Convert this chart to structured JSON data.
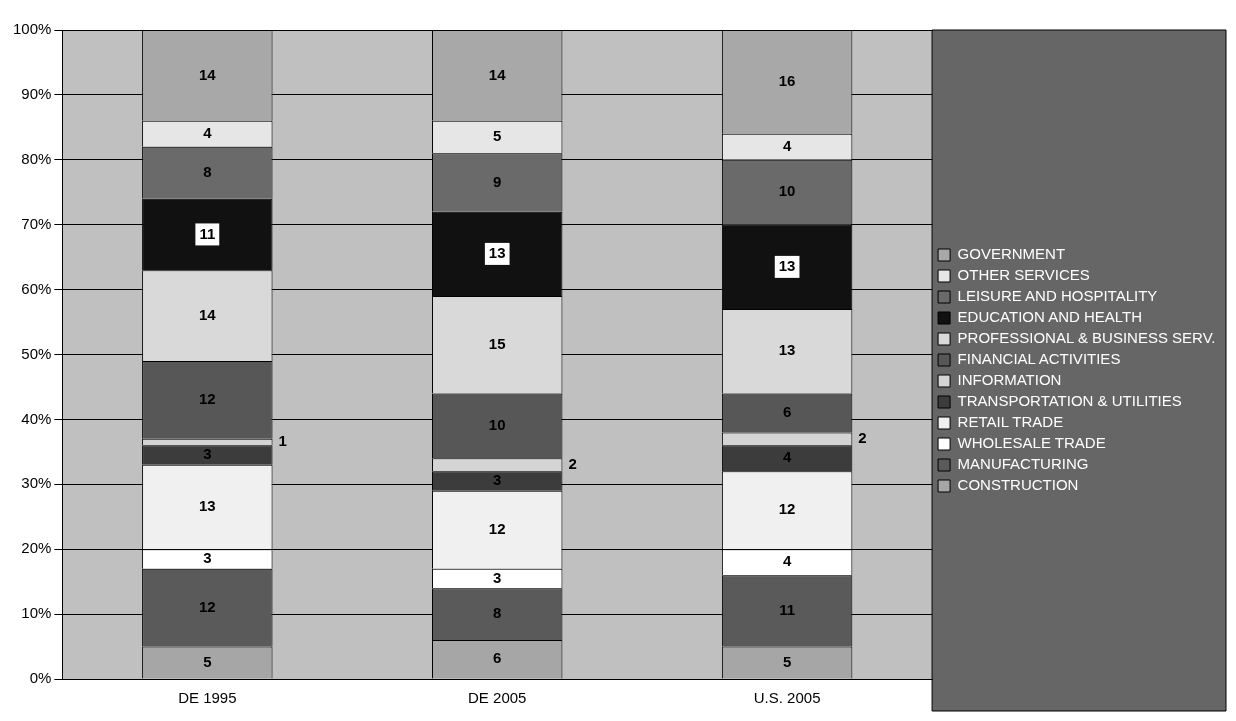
{
  "chart_data": {
    "type": "bar",
    "stacked": true,
    "categories": [
      "DE 1995",
      "DE 2005",
      "U.S. 2005"
    ],
    "series": [
      {
        "name": "CONSTRUCTION",
        "color": "#a6a6a6",
        "values": [
          5,
          6,
          5
        ]
      },
      {
        "name": "MANUFACTURING",
        "color": "#5a5a5a",
        "values": [
          12,
          8,
          11
        ]
      },
      {
        "name": "WHOLESALE TRADE",
        "color": "#ffffff",
        "values": [
          3,
          3,
          4
        ]
      },
      {
        "name": "RETAIL TRADE",
        "color": "#f0f0f0",
        "values": [
          13,
          12,
          12
        ]
      },
      {
        "name": "TRANSPORTATION & UTILITIES",
        "color": "#3c3c3c",
        "values": [
          3,
          3,
          4
        ]
      },
      {
        "name": "INFORMATION",
        "color": "#d4d4d4",
        "values": [
          1,
          2,
          2
        ]
      },
      {
        "name": "FINANCIAL ACTIVITIES",
        "color": "#575757",
        "values": [
          12,
          10,
          6
        ]
      },
      {
        "name": "PROFESSIONAL & BUSINESS SERV.",
        "color": "#d9d9d9",
        "values": [
          14,
          15,
          13
        ]
      },
      {
        "name": "EDUCATION AND HEALTH",
        "color": "#111111",
        "values": [
          11,
          13,
          13
        ]
      },
      {
        "name": "LEISURE AND HOSPITALITY",
        "color": "#6a6a6a",
        "values": [
          8,
          9,
          10
        ]
      },
      {
        "name": "OTHER SERVICES",
        "color": "#e6e6e6",
        "values": [
          4,
          5,
          4
        ]
      },
      {
        "name": "GOVERNMENT",
        "color": "#a8a8a8",
        "values": [
          14,
          14,
          16
        ]
      }
    ],
    "ylim": [
      0,
      100
    ],
    "yticks": [
      {
        "value": 0,
        "label": "0%"
      },
      {
        "value": 10,
        "label": "10%"
      },
      {
        "value": 20,
        "label": "20%"
      },
      {
        "value": 30,
        "label": "30%"
      },
      {
        "value": 40,
        "label": "40%"
      },
      {
        "value": 50,
        "label": "50%"
      },
      {
        "value": 60,
        "label": "60%"
      },
      {
        "value": 70,
        "label": "70%"
      },
      {
        "value": 80,
        "label": "80%"
      },
      {
        "value": 90,
        "label": "90%"
      },
      {
        "value": 100,
        "label": "100%"
      }
    ],
    "grid": "y",
    "legend": "right",
    "data_labels": true
  }
}
